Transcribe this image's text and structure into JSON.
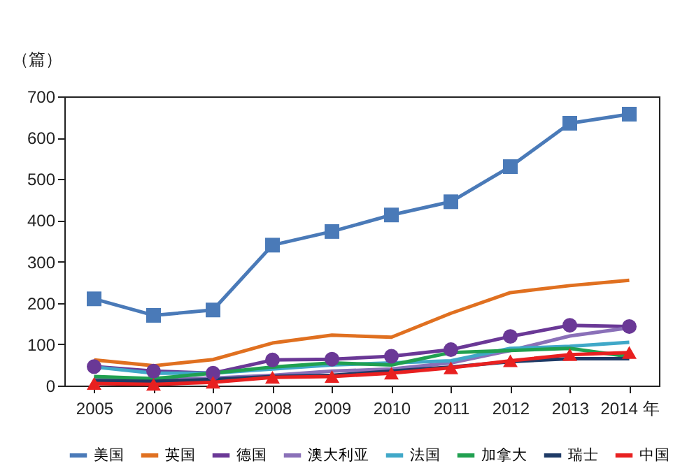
{
  "chart_data": {
    "type": "line",
    "ylabel": "（篇）",
    "categories": [
      "2005",
      "2006",
      "2007",
      "2008",
      "2009",
      "2010",
      "2011",
      "2012",
      "2013",
      "2014 年"
    ],
    "ylim": [
      0,
      700
    ],
    "yticks": [
      0,
      100,
      200,
      300,
      400,
      500,
      600,
      700
    ],
    "grid": false,
    "legend": "bottom",
    "series": [
      {
        "name": "美国",
        "color": "#4a7ab8",
        "marker": "square",
        "values": [
          210,
          170,
          183,
          340,
          373,
          413,
          445,
          530,
          635,
          657
        ]
      },
      {
        "name": "英国",
        "color": "#e07020",
        "values": [
          62,
          48,
          63,
          103,
          122,
          117,
          175,
          225,
          242,
          255
        ]
      },
      {
        "name": "德国",
        "color": "#6a3896",
        "marker": "circle",
        "values": [
          46,
          35,
          30,
          62,
          64,
          71,
          87,
          119,
          146,
          143
        ]
      },
      {
        "name": "澳大利亚",
        "color": "#8a70b8",
        "values": [
          20,
          15,
          18,
          25,
          35,
          40,
          55,
          85,
          120,
          140
        ]
      },
      {
        "name": "法国",
        "color": "#40a8c8",
        "values": [
          45,
          30,
          30,
          40,
          50,
          55,
          60,
          90,
          95,
          105
        ]
      },
      {
        "name": "加拿大",
        "color": "#20a050",
        "values": [
          22,
          17,
          30,
          45,
          55,
          50,
          80,
          85,
          90,
          70
        ]
      },
      {
        "name": "瑞士",
        "color": "#1e3a66",
        "values": [
          12,
          10,
          15,
          22,
          25,
          35,
          45,
          58,
          65,
          65
        ]
      },
      {
        "name": "中国",
        "color": "#e82020",
        "marker": "triangle",
        "values": [
          5,
          3,
          8,
          20,
          22,
          30,
          43,
          60,
          75,
          80
        ]
      }
    ]
  }
}
